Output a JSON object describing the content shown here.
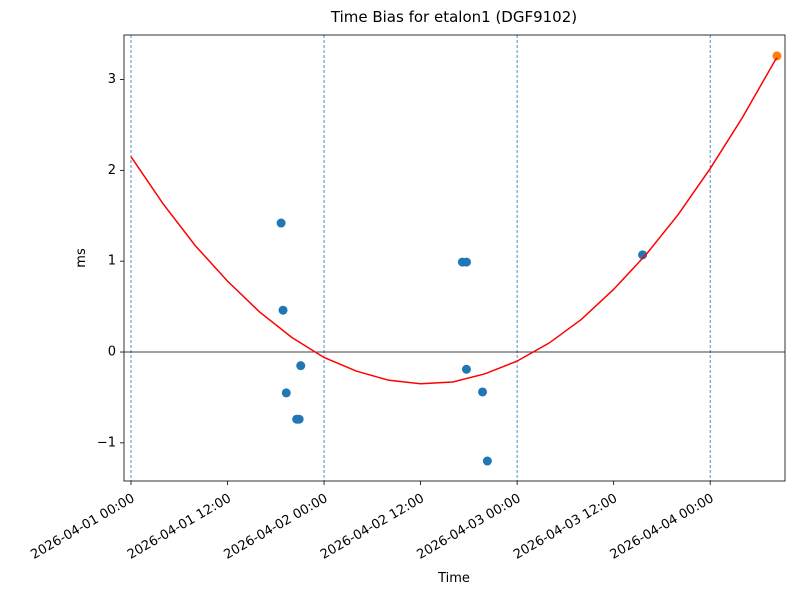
{
  "chart_data": {
    "type": "scatter",
    "title": "Time Bias for etalon1 (DGF9102)",
    "x_label": "Time",
    "y_label": "ms",
    "xlim": [
      -0.87,
      81.3
    ],
    "ylim": [
      -1.42,
      3.49
    ],
    "xticks": [
      {
        "value": 0,
        "label": "2026-04-01 00:00"
      },
      {
        "value": 12,
        "label": "2026-04-01 12:00"
      },
      {
        "value": 24,
        "label": "2026-04-02 00:00"
      },
      {
        "value": 36,
        "label": "2026-04-02 12:00"
      },
      {
        "value": 48,
        "label": "2026-04-03 00:00"
      },
      {
        "value": 60,
        "label": "2026-04-03 12:00"
      },
      {
        "value": 72,
        "label": "2026-04-04 00:00"
      }
    ],
    "yticks": [
      {
        "value": -1,
        "label": "−1"
      },
      0,
      1,
      2,
      3
    ],
    "series": [
      {
        "type": "scatter",
        "color": "#1f77b4",
        "x": [
          18.66,
          18.9,
          19.3,
          20.6,
          20.9,
          21.1,
          41.2,
          41.7,
          41.7,
          43.7,
          44.3,
          63.6
        ],
        "values": [
          1.42,
          0.46,
          -0.45,
          -0.74,
          -0.74,
          -0.15,
          0.99,
          0.99,
          -0.19,
          -0.44,
          -1.2,
          1.07
        ]
      },
      {
        "type": "scatter",
        "color": "#ff7f0e",
        "x": [
          80.3
        ],
        "values": [
          3.26
        ]
      },
      {
        "type": "line",
        "color": "#ff0000",
        "x": [
          0,
          4,
          8,
          12,
          16,
          20,
          24,
          28,
          32,
          36,
          40,
          44,
          48,
          52,
          56,
          60,
          64,
          68,
          72,
          76,
          80,
          80.3
        ],
        "values": [
          2.15,
          1.63,
          1.17,
          0.78,
          0.44,
          0.16,
          -0.06,
          -0.21,
          -0.31,
          -0.35,
          -0.33,
          -0.24,
          -0.1,
          0.1,
          0.36,
          0.69,
          1.07,
          1.51,
          2.02,
          2.58,
          3.2,
          3.24
        ]
      }
    ]
  }
}
